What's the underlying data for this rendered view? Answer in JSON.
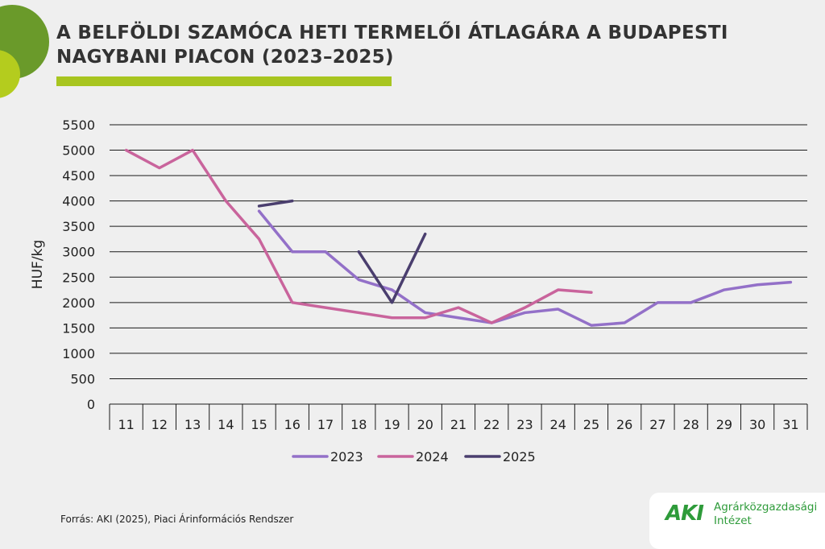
{
  "header": {
    "title_line1": "A BELFÖLDI SZAMÓCA HETI TERMELŐI ÁTLAGÁRA A BUDAPESTI",
    "title_line2": "NAGYBANI PIACON (2023–2025)"
  },
  "footer": {
    "source": "Forrás: AKI (2025), Piaci Árinformációs Rendszer"
  },
  "logo": {
    "mark": "AKI",
    "line1": "Agrárközgazdasági",
    "line2": "Intézet"
  },
  "colors": {
    "accent": "#a8c520",
    "circle_dark": "#6a9a2a",
    "circle_light": "#b4cc1e",
    "logo_green": "#2e9b3a",
    "text": "#333333"
  },
  "chart_data": {
    "type": "line",
    "ylabel": "HUF/kg",
    "xlabel": "",
    "ylim": [
      0,
      5500
    ],
    "yticks": [
      0,
      500,
      1000,
      1500,
      2000,
      2500,
      3000,
      3500,
      4000,
      4500,
      5000,
      5500
    ],
    "categories": [
      "11",
      "12",
      "13",
      "14",
      "15",
      "16",
      "17",
      "18",
      "19",
      "20",
      "21",
      "22",
      "23",
      "24",
      "25",
      "26",
      "27",
      "28",
      "29",
      "30",
      "31"
    ],
    "grid": true,
    "legend": "bottom",
    "series": [
      {
        "name": "2023",
        "color": "#9370c8",
        "values": [
          null,
          null,
          null,
          null,
          3800,
          3000,
          3000,
          2450,
          2250,
          1800,
          1700,
          1600,
          1800,
          1870,
          1550,
          1600,
          2000,
          2000,
          2250,
          2350,
          2400
        ]
      },
      {
        "name": "2024",
        "color": "#c9649c",
        "values": [
          5000,
          4650,
          5000,
          4000,
          3250,
          2000,
          1900,
          1800,
          1700,
          1700,
          1900,
          1600,
          1900,
          2250,
          2200,
          null,
          null,
          null,
          null,
          null,
          null
        ]
      },
      {
        "name": "2025",
        "color": "#4a3e6e",
        "values": [
          null,
          null,
          null,
          null,
          3900,
          4000,
          null,
          3000,
          2000,
          3350,
          null,
          null,
          null,
          null,
          null,
          null,
          null,
          null,
          null,
          null,
          null
        ]
      }
    ]
  }
}
